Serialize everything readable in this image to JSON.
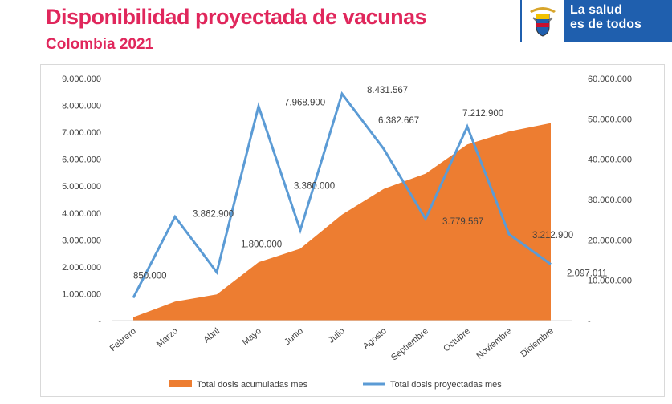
{
  "header": {
    "title": "Disponibilidad proyectada de vacunas",
    "subtitle": "Colombia  2021",
    "brand_text_line1": "La salud",
    "brand_text_line2": "es de todos",
    "brand_color": "#1f5fae",
    "title_color": "#e0275c"
  },
  "chart_data": {
    "type": "area",
    "categories": [
      "Febrero",
      "Marzo",
      "Abril",
      "Mayo",
      "Junio",
      "Julio",
      "Agosto",
      "Septiembre",
      "Octubre",
      "Noviembre",
      "Diciembre"
    ],
    "series": [
      {
        "name": "Total dosis acumuladas mes",
        "type": "area",
        "axis": "right",
        "color": "#ed7d31",
        "values": [
          850000,
          4712900,
          6512900,
          14481800,
          17841800,
          26273367,
          32656034,
          36435601,
          43648501,
          46861401,
          48958412
        ]
      },
      {
        "name": "Total dosis proyectadas mes",
        "type": "line",
        "axis": "left",
        "color": "#5b9bd5",
        "values": [
          850000,
          3862900,
          1800000,
          7968900,
          3360000,
          8431567,
          6382667,
          3779567,
          7212900,
          3212900,
          2097011
        ]
      }
    ],
    "data_labels": [
      "850.000",
      "3.862.900",
      "1.800.000",
      "7.968.900",
      "3.360.000",
      "8.431.567",
      "6.382.667",
      "3.779.567",
      "7.212.900",
      "3.212.900",
      "2.097.011"
    ],
    "y_left": {
      "min": 0,
      "max": 9000000,
      "ticks": [
        "-",
        "1.000.000",
        "2.000.000",
        "3.000.000",
        "4.000.000",
        "5.000.000",
        "6.000.000",
        "7.000.000",
        "8.000.000",
        "9.000.000"
      ]
    },
    "y_right": {
      "min": 0,
      "max": 60000000,
      "ticks": [
        "-",
        "10.000.000",
        "20.000.000",
        "30.000.000",
        "40.000.000",
        "50.000.000",
        "60.000.000"
      ]
    },
    "grid": false,
    "legend_position": "bottom"
  }
}
